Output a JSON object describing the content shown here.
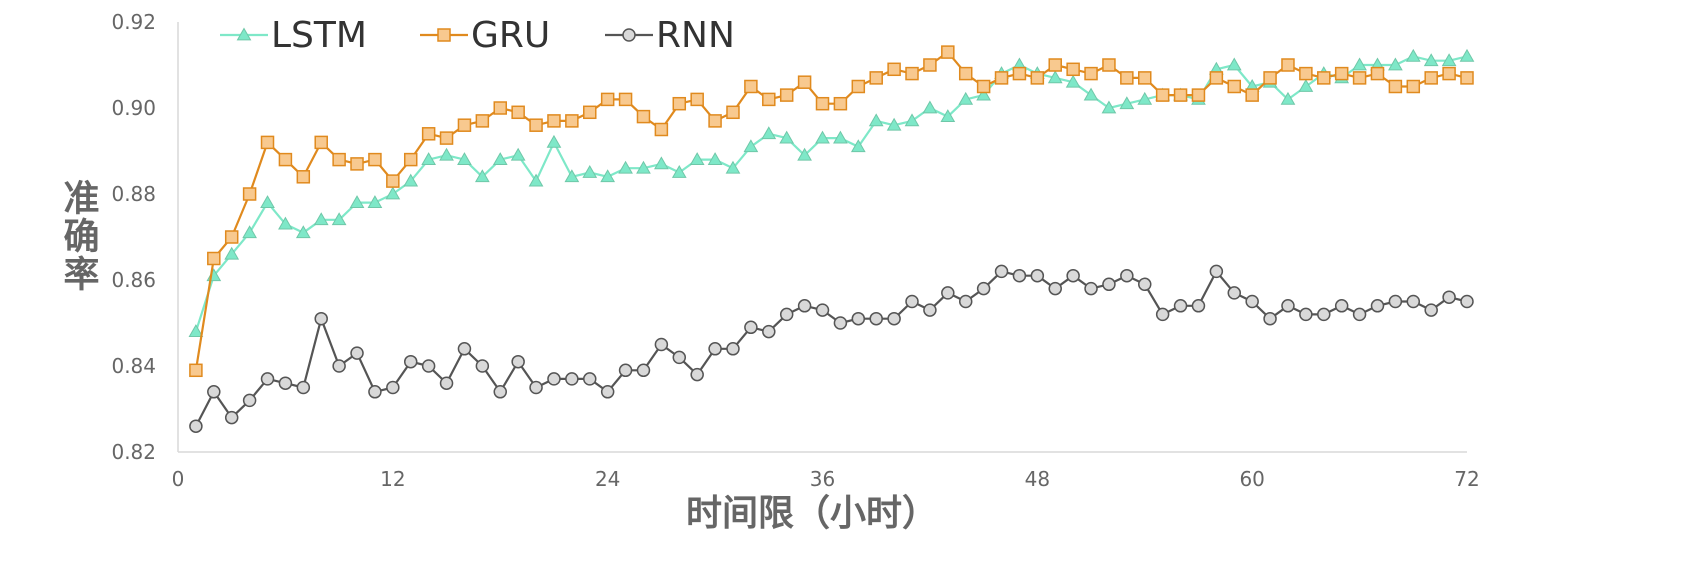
{
  "chart_data": {
    "type": "line",
    "xlabel": "时间限（小时）",
    "ylabel": "准确率",
    "xlim": [
      0,
      72
    ],
    "ylim": [
      0.82,
      0.92
    ],
    "x_ticks": [
      "0",
      "12",
      "24",
      "36",
      "48",
      "60",
      "72"
    ],
    "y_ticks": [
      "0.82",
      "0.84",
      "0.86",
      "0.88",
      "0.90",
      "0.92"
    ],
    "grid": false,
    "legend_position": "top-left",
    "x": [
      1,
      2,
      3,
      4,
      5,
      6,
      7,
      8,
      9,
      10,
      11,
      12,
      13,
      14,
      15,
      16,
      17,
      18,
      19,
      20,
      21,
      22,
      23,
      24,
      25,
      26,
      27,
      28,
      29,
      30,
      31,
      32,
      33,
      34,
      35,
      36,
      37,
      38,
      39,
      40,
      41,
      42,
      43,
      44,
      45,
      46,
      47,
      48,
      49,
      50,
      51,
      52,
      53,
      54,
      55,
      56,
      57,
      58,
      59,
      60,
      61,
      62,
      63,
      64,
      65,
      66,
      67,
      68,
      69,
      70,
      71,
      72
    ],
    "series": [
      {
        "name": "LSTM",
        "color": "#7ee8c8",
        "marker": "triangle",
        "values": [
          0.848,
          0.861,
          0.866,
          0.871,
          0.878,
          0.873,
          0.871,
          0.874,
          0.874,
          0.878,
          0.878,
          0.88,
          0.883,
          0.888,
          0.889,
          0.888,
          0.884,
          0.888,
          0.889,
          0.883,
          0.892,
          0.884,
          0.885,
          0.884,
          0.886,
          0.886,
          0.887,
          0.885,
          0.888,
          0.888,
          0.886,
          0.891,
          0.894,
          0.893,
          0.889,
          0.893,
          0.893,
          0.891,
          0.897,
          0.896,
          0.897,
          0.9,
          0.898,
          0.902,
          0.903,
          0.908,
          0.91,
          0.908,
          0.907,
          0.906,
          0.903,
          0.9,
          0.901,
          0.902,
          0.903,
          0.903,
          0.902,
          0.909,
          0.91,
          0.905,
          0.906,
          0.902,
          0.905,
          0.908,
          0.907,
          0.91,
          0.91,
          0.91,
          0.912,
          0.911,
          0.911,
          0.912
        ]
      },
      {
        "name": "GRU",
        "color": "#e08a1e",
        "fill": "#f8c98f",
        "marker": "square",
        "values": [
          0.839,
          0.865,
          0.87,
          0.88,
          0.892,
          0.888,
          0.884,
          0.892,
          0.888,
          0.887,
          0.888,
          0.883,
          0.888,
          0.894,
          0.893,
          0.896,
          0.897,
          0.9,
          0.899,
          0.896,
          0.897,
          0.897,
          0.899,
          0.902,
          0.902,
          0.898,
          0.895,
          0.901,
          0.902,
          0.897,
          0.899,
          0.905,
          0.902,
          0.903,
          0.906,
          0.901,
          0.901,
          0.905,
          0.907,
          0.909,
          0.908,
          0.91,
          0.913,
          0.908,
          0.905,
          0.907,
          0.908,
          0.907,
          0.91,
          0.909,
          0.908,
          0.91,
          0.907,
          0.907,
          0.903,
          0.903,
          0.903,
          0.907,
          0.905,
          0.903,
          0.907,
          0.91,
          0.908,
          0.907,
          0.908,
          0.907,
          0.908,
          0.905,
          0.905,
          0.907,
          0.908,
          0.907
        ]
      },
      {
        "name": "RNN",
        "color": "#555555",
        "fill": "#d9d9d9",
        "marker": "circle",
        "values": [
          0.826,
          0.834,
          0.828,
          0.832,
          0.837,
          0.836,
          0.835,
          0.851,
          0.84,
          0.843,
          0.834,
          0.835,
          0.841,
          0.84,
          0.836,
          0.844,
          0.84,
          0.834,
          0.841,
          0.835,
          0.837,
          0.837,
          0.837,
          0.834,
          0.839,
          0.839,
          0.845,
          0.842,
          0.838,
          0.844,
          0.844,
          0.849,
          0.848,
          0.852,
          0.854,
          0.853,
          0.85,
          0.851,
          0.851,
          0.851,
          0.855,
          0.853,
          0.857,
          0.855,
          0.858,
          0.862,
          0.861,
          0.861,
          0.858,
          0.861,
          0.858,
          0.859,
          0.861,
          0.859,
          0.852,
          0.854,
          0.854,
          0.862,
          0.857,
          0.855,
          0.851,
          0.854,
          0.852,
          0.852,
          0.854,
          0.852,
          0.854,
          0.855,
          0.855,
          0.853,
          0.856,
          0.855
        ]
      }
    ]
  }
}
